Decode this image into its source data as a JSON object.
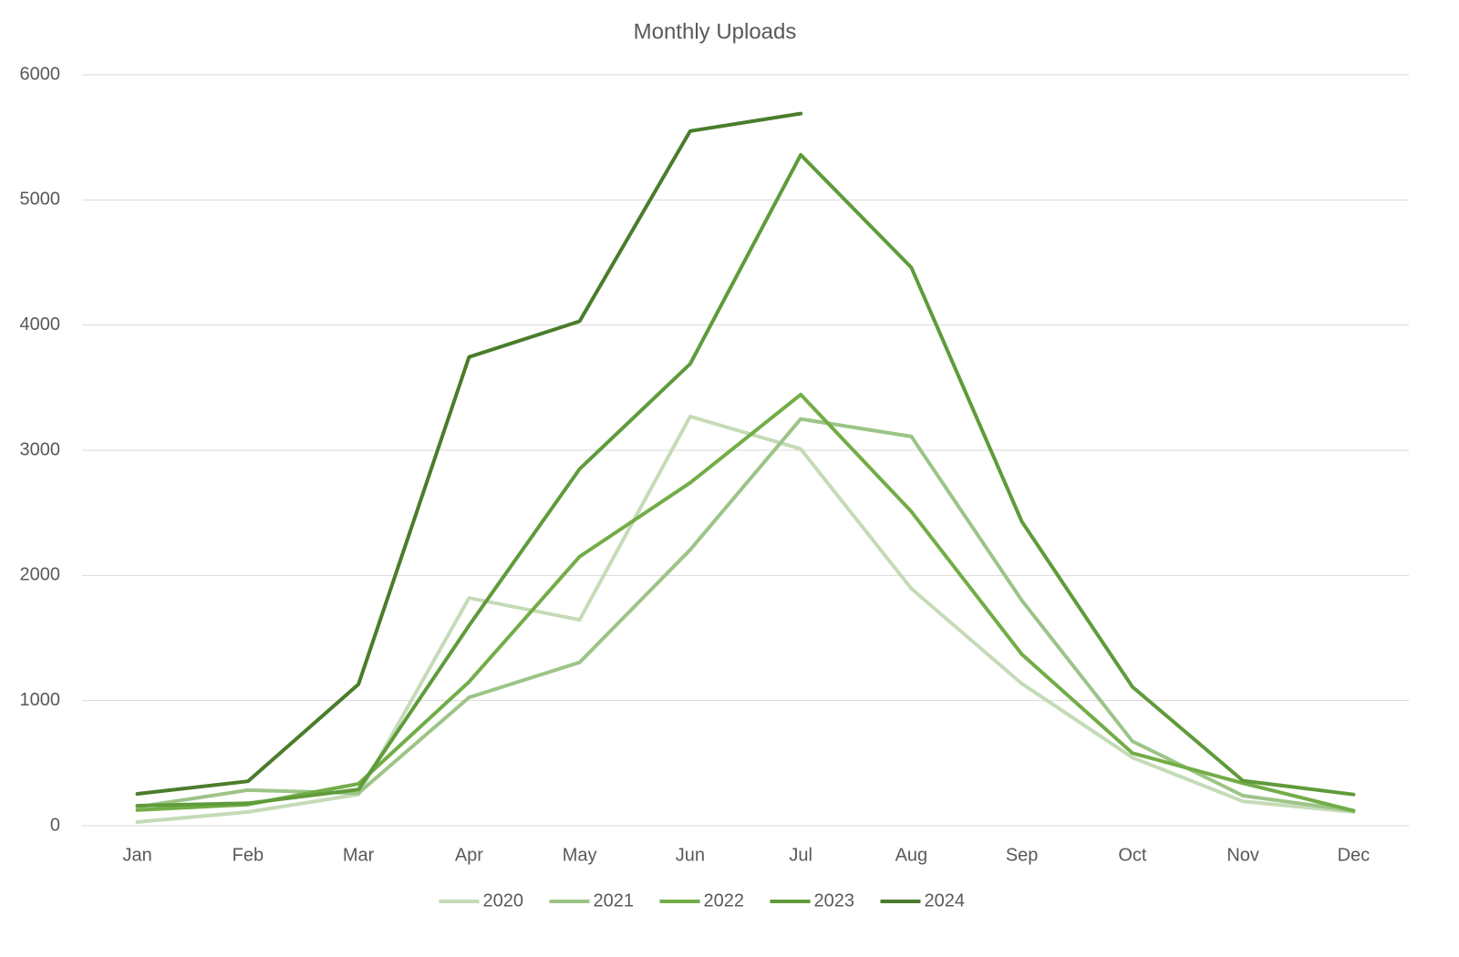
{
  "chart_data": {
    "type": "line",
    "title": "Monthly Uploads",
    "categories": [
      "Jan",
      "Feb",
      "Mar",
      "Apr",
      "May",
      "Jun",
      "Jul",
      "Aug",
      "Sep",
      "Oct",
      "Nov",
      "Dec"
    ],
    "series": [
      {
        "name": "2020",
        "color": "#c5dbb7",
        "values": [
          30,
          110,
          250,
          1820,
          1645,
          3270,
          3010,
          1895,
          1135,
          545,
          195,
          110
        ]
      },
      {
        "name": "2021",
        "color": "#9cc487",
        "values": [
          150,
          285,
          260,
          1025,
          1305,
          2205,
          3250,
          3110,
          1800,
          675,
          240,
          120
        ]
      },
      {
        "name": "2022",
        "color": "#72ad47",
        "values": [
          125,
          170,
          335,
          1150,
          2150,
          2740,
          3445,
          2510,
          1370,
          580,
          340,
          120
        ]
      },
      {
        "name": "2023",
        "color": "#5f9b3a",
        "values": [
          160,
          180,
          290,
          1600,
          2850,
          3690,
          5360,
          4460,
          2430,
          1110,
          360,
          250
        ]
      },
      {
        "name": "2024",
        "color": "#4a7d2b",
        "values": [
          255,
          355,
          1130,
          3745,
          4030,
          5550,
          5690,
          null,
          null,
          null,
          null,
          null
        ]
      }
    ],
    "ylim": [
      0,
      6000
    ],
    "yticks": [
      0,
      1000,
      2000,
      3000,
      4000,
      5000,
      6000
    ],
    "grid": true,
    "legend": "bottom"
  }
}
